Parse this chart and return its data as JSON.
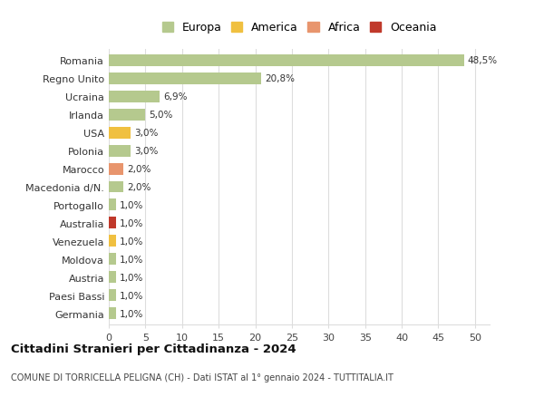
{
  "categories": [
    "Germania",
    "Paesi Bassi",
    "Austria",
    "Moldova",
    "Venezuela",
    "Australia",
    "Portogallo",
    "Macedonia d/N.",
    "Marocco",
    "Polonia",
    "USA",
    "Irlanda",
    "Ucraina",
    "Regno Unito",
    "Romania"
  ],
  "values": [
    1.0,
    1.0,
    1.0,
    1.0,
    1.0,
    1.0,
    1.0,
    2.0,
    2.0,
    3.0,
    3.0,
    5.0,
    6.9,
    20.8,
    48.5
  ],
  "labels": [
    "1,0%",
    "1,0%",
    "1,0%",
    "1,0%",
    "1,0%",
    "1,0%",
    "1,0%",
    "2,0%",
    "2,0%",
    "3,0%",
    "3,0%",
    "5,0%",
    "6,9%",
    "20,8%",
    "48,5%"
  ],
  "colors": [
    "#b5c98e",
    "#b5c98e",
    "#b5c98e",
    "#b5c98e",
    "#f0c040",
    "#c0392b",
    "#b5c98e",
    "#b5c98e",
    "#e8956d",
    "#b5c98e",
    "#f0c040",
    "#b5c98e",
    "#b5c98e",
    "#b5c98e",
    "#b5c98e"
  ],
  "legend_labels": [
    "Europa",
    "America",
    "Africa",
    "Oceania"
  ],
  "legend_colors": [
    "#b5c98e",
    "#f0c040",
    "#e8956d",
    "#c0392b"
  ],
  "title": "Cittadini Stranieri per Cittadinanza - 2024",
  "subtitle": "COMUNE DI TORRICELLA PELIGNA (CH) - Dati ISTAT al 1° gennaio 2024 - TUTTITALIA.IT",
  "xlim": [
    0,
    52
  ],
  "xticks": [
    0,
    5,
    10,
    15,
    20,
    25,
    30,
    35,
    40,
    45,
    50
  ],
  "bg_color": "#ffffff",
  "grid_color": "#dddddd",
  "bar_height": 0.65
}
